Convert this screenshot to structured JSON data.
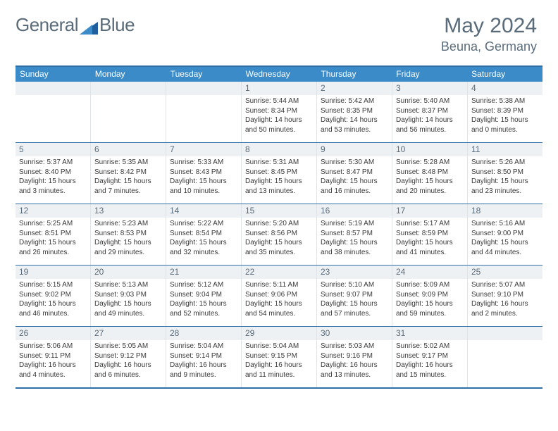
{
  "logo": {
    "text1": "General",
    "text2": "Blue"
  },
  "colors": {
    "header_band": "#3b8bc9",
    "rule": "#2f6fa8",
    "daynum_bg": "#eef1f3",
    "text_muted": "#5a6b7a",
    "logo_triangle": "#1f5f9e"
  },
  "title": "May 2024",
  "location": "Beuna, Germany",
  "dow": [
    "Sunday",
    "Monday",
    "Tuesday",
    "Wednesday",
    "Thursday",
    "Friday",
    "Saturday"
  ],
  "weeks": [
    [
      {
        "n": "",
        "sr": "",
        "ss": "",
        "dl": ""
      },
      {
        "n": "",
        "sr": "",
        "ss": "",
        "dl": ""
      },
      {
        "n": "",
        "sr": "",
        "ss": "",
        "dl": ""
      },
      {
        "n": "1",
        "sr": "Sunrise: 5:44 AM",
        "ss": "Sunset: 8:34 PM",
        "dl": "Daylight: 14 hours and 50 minutes."
      },
      {
        "n": "2",
        "sr": "Sunrise: 5:42 AM",
        "ss": "Sunset: 8:35 PM",
        "dl": "Daylight: 14 hours and 53 minutes."
      },
      {
        "n": "3",
        "sr": "Sunrise: 5:40 AM",
        "ss": "Sunset: 8:37 PM",
        "dl": "Daylight: 14 hours and 56 minutes."
      },
      {
        "n": "4",
        "sr": "Sunrise: 5:38 AM",
        "ss": "Sunset: 8:39 PM",
        "dl": "Daylight: 15 hours and 0 minutes."
      }
    ],
    [
      {
        "n": "5",
        "sr": "Sunrise: 5:37 AM",
        "ss": "Sunset: 8:40 PM",
        "dl": "Daylight: 15 hours and 3 minutes."
      },
      {
        "n": "6",
        "sr": "Sunrise: 5:35 AM",
        "ss": "Sunset: 8:42 PM",
        "dl": "Daylight: 15 hours and 7 minutes."
      },
      {
        "n": "7",
        "sr": "Sunrise: 5:33 AM",
        "ss": "Sunset: 8:43 PM",
        "dl": "Daylight: 15 hours and 10 minutes."
      },
      {
        "n": "8",
        "sr": "Sunrise: 5:31 AM",
        "ss": "Sunset: 8:45 PM",
        "dl": "Daylight: 15 hours and 13 minutes."
      },
      {
        "n": "9",
        "sr": "Sunrise: 5:30 AM",
        "ss": "Sunset: 8:47 PM",
        "dl": "Daylight: 15 hours and 16 minutes."
      },
      {
        "n": "10",
        "sr": "Sunrise: 5:28 AM",
        "ss": "Sunset: 8:48 PM",
        "dl": "Daylight: 15 hours and 20 minutes."
      },
      {
        "n": "11",
        "sr": "Sunrise: 5:26 AM",
        "ss": "Sunset: 8:50 PM",
        "dl": "Daylight: 15 hours and 23 minutes."
      }
    ],
    [
      {
        "n": "12",
        "sr": "Sunrise: 5:25 AM",
        "ss": "Sunset: 8:51 PM",
        "dl": "Daylight: 15 hours and 26 minutes."
      },
      {
        "n": "13",
        "sr": "Sunrise: 5:23 AM",
        "ss": "Sunset: 8:53 PM",
        "dl": "Daylight: 15 hours and 29 minutes."
      },
      {
        "n": "14",
        "sr": "Sunrise: 5:22 AM",
        "ss": "Sunset: 8:54 PM",
        "dl": "Daylight: 15 hours and 32 minutes."
      },
      {
        "n": "15",
        "sr": "Sunrise: 5:20 AM",
        "ss": "Sunset: 8:56 PM",
        "dl": "Daylight: 15 hours and 35 minutes."
      },
      {
        "n": "16",
        "sr": "Sunrise: 5:19 AM",
        "ss": "Sunset: 8:57 PM",
        "dl": "Daylight: 15 hours and 38 minutes."
      },
      {
        "n": "17",
        "sr": "Sunrise: 5:17 AM",
        "ss": "Sunset: 8:59 PM",
        "dl": "Daylight: 15 hours and 41 minutes."
      },
      {
        "n": "18",
        "sr": "Sunrise: 5:16 AM",
        "ss": "Sunset: 9:00 PM",
        "dl": "Daylight: 15 hours and 44 minutes."
      }
    ],
    [
      {
        "n": "19",
        "sr": "Sunrise: 5:15 AM",
        "ss": "Sunset: 9:02 PM",
        "dl": "Daylight: 15 hours and 46 minutes."
      },
      {
        "n": "20",
        "sr": "Sunrise: 5:13 AM",
        "ss": "Sunset: 9:03 PM",
        "dl": "Daylight: 15 hours and 49 minutes."
      },
      {
        "n": "21",
        "sr": "Sunrise: 5:12 AM",
        "ss": "Sunset: 9:04 PM",
        "dl": "Daylight: 15 hours and 52 minutes."
      },
      {
        "n": "22",
        "sr": "Sunrise: 5:11 AM",
        "ss": "Sunset: 9:06 PM",
        "dl": "Daylight: 15 hours and 54 minutes."
      },
      {
        "n": "23",
        "sr": "Sunrise: 5:10 AM",
        "ss": "Sunset: 9:07 PM",
        "dl": "Daylight: 15 hours and 57 minutes."
      },
      {
        "n": "24",
        "sr": "Sunrise: 5:09 AM",
        "ss": "Sunset: 9:09 PM",
        "dl": "Daylight: 15 hours and 59 minutes."
      },
      {
        "n": "25",
        "sr": "Sunrise: 5:07 AM",
        "ss": "Sunset: 9:10 PM",
        "dl": "Daylight: 16 hours and 2 minutes."
      }
    ],
    [
      {
        "n": "26",
        "sr": "Sunrise: 5:06 AM",
        "ss": "Sunset: 9:11 PM",
        "dl": "Daylight: 16 hours and 4 minutes."
      },
      {
        "n": "27",
        "sr": "Sunrise: 5:05 AM",
        "ss": "Sunset: 9:12 PM",
        "dl": "Daylight: 16 hours and 6 minutes."
      },
      {
        "n": "28",
        "sr": "Sunrise: 5:04 AM",
        "ss": "Sunset: 9:14 PM",
        "dl": "Daylight: 16 hours and 9 minutes."
      },
      {
        "n": "29",
        "sr": "Sunrise: 5:04 AM",
        "ss": "Sunset: 9:15 PM",
        "dl": "Daylight: 16 hours and 11 minutes."
      },
      {
        "n": "30",
        "sr": "Sunrise: 5:03 AM",
        "ss": "Sunset: 9:16 PM",
        "dl": "Daylight: 16 hours and 13 minutes."
      },
      {
        "n": "31",
        "sr": "Sunrise: 5:02 AM",
        "ss": "Sunset: 9:17 PM",
        "dl": "Daylight: 16 hours and 15 minutes."
      },
      {
        "n": "",
        "sr": "",
        "ss": "",
        "dl": ""
      }
    ]
  ]
}
